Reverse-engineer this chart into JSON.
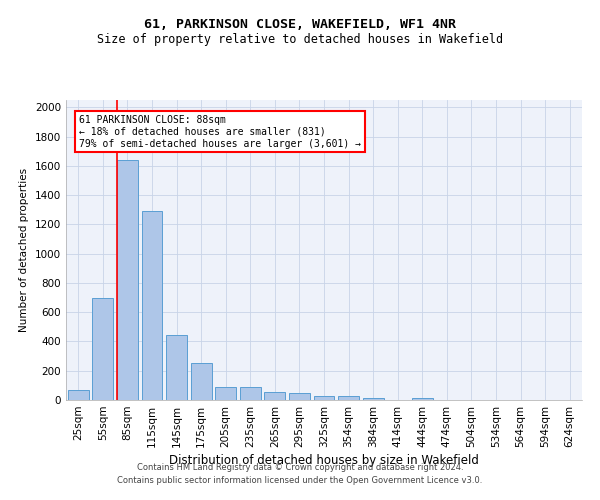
{
  "title": "61, PARKINSON CLOSE, WAKEFIELD, WF1 4NR",
  "subtitle": "Size of property relative to detached houses in Wakefield",
  "xlabel": "Distribution of detached houses by size in Wakefield",
  "ylabel": "Number of detached properties",
  "bar_labels": [
    "25sqm",
    "55sqm",
    "85sqm",
    "115sqm",
    "145sqm",
    "175sqm",
    "205sqm",
    "235sqm",
    "265sqm",
    "295sqm",
    "325sqm",
    "354sqm",
    "384sqm",
    "414sqm",
    "444sqm",
    "474sqm",
    "504sqm",
    "534sqm",
    "564sqm",
    "594sqm",
    "624sqm"
  ],
  "bar_values": [
    65,
    695,
    1640,
    1290,
    445,
    255,
    90,
    90,
    55,
    45,
    30,
    30,
    15,
    0,
    15,
    0,
    0,
    0,
    0,
    0,
    0
  ],
  "bar_color": "#aec6e8",
  "bar_edge_color": "#5a9fd4",
  "ylim": [
    0,
    2050
  ],
  "yticks": [
    0,
    200,
    400,
    600,
    800,
    1000,
    1200,
    1400,
    1600,
    1800,
    2000
  ],
  "red_line_x": 1.575,
  "annotation_text": "61 PARKINSON CLOSE: 88sqm\n← 18% of detached houses are smaller (831)\n79% of semi-detached houses are larger (3,601) →",
  "footer_line1": "Contains HM Land Registry data © Crown copyright and database right 2024.",
  "footer_line2": "Contains public sector information licensed under the Open Government Licence v3.0.",
  "grid_color": "#c8d4e8",
  "bg_color": "#ffffff",
  "plot_bg_color": "#eef2fa"
}
